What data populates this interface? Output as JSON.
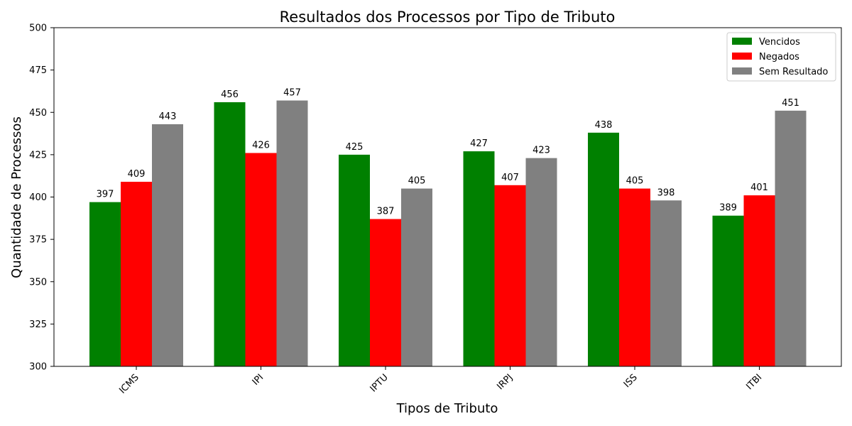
{
  "chart_data": {
    "type": "bar",
    "title": "Resultados dos Processos por Tipo de Tributo",
    "xlabel": "Tipos de Tributo",
    "ylabel": "Quantidade de Processos",
    "categories": [
      "ICMS",
      "IPI",
      "IPTU",
      "IRPJ",
      "ISS",
      "ITBI"
    ],
    "series": [
      {
        "name": "Vencidos",
        "color": "#008000",
        "values": [
          397,
          456,
          425,
          427,
          438,
          389
        ]
      },
      {
        "name": "Negados",
        "color": "#ff0000",
        "values": [
          409,
          426,
          387,
          407,
          405,
          401
        ]
      },
      {
        "name": "Sem Resultado",
        "color": "#808080",
        "values": [
          443,
          457,
          405,
          423,
          398,
          451
        ]
      }
    ],
    "ylim": [
      300,
      500
    ],
    "yticks": [
      300,
      325,
      350,
      375,
      400,
      425,
      450,
      475,
      500
    ],
    "legend_position": "top-right",
    "grid": false,
    "xtick_rotation": 45
  }
}
